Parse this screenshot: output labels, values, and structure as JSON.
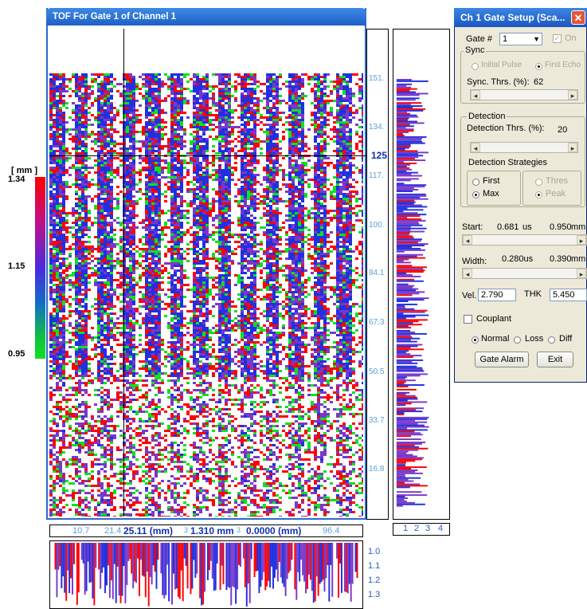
{
  "tof_window": {
    "title": "TOF For Gate 1 of Channel 1"
  },
  "legend": {
    "unit": "[ mm ]",
    "max": "1.34",
    "mid": "1.15",
    "min": "0.95"
  },
  "y_axis": {
    "ticks": [
      "151.",
      "134.",
      "117.",
      "100.",
      "84.1",
      "67.3",
      "50.5",
      "33.7",
      "16.8"
    ],
    "cursor_value": "125"
  },
  "status_bar": {
    "x1": "10.7",
    "x2": "21.4",
    "cursor_x": "25.11 (mm)",
    "cursor_val": "1.310 mm",
    "z": "0.0000 (mm)",
    "x_end": "96.4",
    "frag1": "3",
    "frag2": "3"
  },
  "right_profile_axis": [
    "1",
    "2",
    "3",
    "4"
  ],
  "bottom_profile_axis": [
    "1.0",
    "1.1",
    "1.2",
    "1.3"
  ],
  "dialog": {
    "title": "Ch  1 Gate Setup (Sca...",
    "gate_label": "Gate #",
    "gate_value": "1",
    "on_label": "On",
    "sync_group": "Sync",
    "initial_pulse": "Initial Pulse",
    "first_echo": "First Echo",
    "sync_thrs_label": "Sync. Thrs. (%):",
    "sync_thrs_value": "62",
    "detection_group": "Detection",
    "det_thrs_label": "Detection Thrs. (%):",
    "det_thrs_value": "20",
    "strategies_label": "Detection Strategies",
    "first": "First",
    "thres": "Thres",
    "max": "Max",
    "peak": "Peak",
    "start_label": "Start:",
    "start_us": "0.681",
    "start_us_unit": "us",
    "start_mm": "0.950",
    "start_mm_unit": "mm",
    "width_label": "Width:",
    "width_us": "0.280us",
    "width_mm": "0.390",
    "width_mm_unit": "mm",
    "vel_label": "Vel.",
    "vel_value": "2.790",
    "thk_label": "THK",
    "thk_value": "5.450",
    "couplant": "Couplant",
    "normal": "Normal",
    "loss": "Loss",
    "diff": "Diff",
    "gate_alarm": "Gate Alarm",
    "exit": "Exit"
  },
  "colors": {
    "red": "#ff0000",
    "blue": "#2030e0",
    "purple": "#7a38c8",
    "green": "#10e020",
    "title_blue": "#1f5fc7"
  }
}
